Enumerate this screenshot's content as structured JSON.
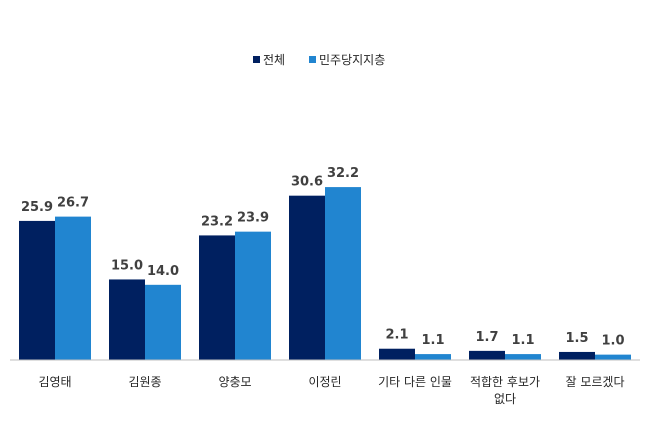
{
  "chart_data": {
    "type": "bar",
    "title": "",
    "xlabel": "",
    "ylabel": "",
    "ylim": [
      0,
      35
    ],
    "grid": false,
    "legend_position": "top-center",
    "categories": [
      "김영태",
      "김원종",
      "양충모",
      "이정린",
      "기타 다른 인물",
      "적합한 후보가 없다",
      "잘 모르겠다"
    ],
    "category_lines": [
      [
        "김영태"
      ],
      [
        "김원종"
      ],
      [
        "양충모"
      ],
      [
        "이정린"
      ],
      [
        "기타 다른 인물"
      ],
      [
        "적합한 후보가",
        "없다"
      ],
      [
        "잘 모르겠다"
      ]
    ],
    "series": [
      {
        "name": "전체",
        "color": "#002060",
        "values": [
          25.9,
          15.0,
          23.2,
          30.6,
          2.1,
          1.7,
          1.5
        ],
        "labels": [
          "25.9",
          "15.0",
          "23.2",
          "30.6",
          "2.1",
          "1.7",
          "1.5"
        ]
      },
      {
        "name": "민주당지지층",
        "color": "#2185d0",
        "values": [
          26.7,
          14.0,
          23.9,
          32.2,
          1.1,
          1.1,
          1.0
        ],
        "labels": [
          "26.7",
          "14.0",
          "23.9",
          "32.2",
          "1.1",
          "1.1",
          "1.0"
        ]
      }
    ]
  }
}
